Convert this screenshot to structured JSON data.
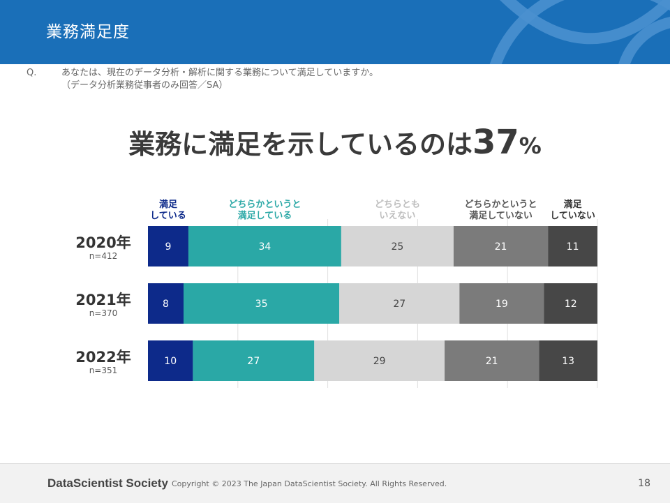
{
  "header": {
    "title": "業務満足度"
  },
  "question": {
    "label": "Q.",
    "text": "あなたは、現在のデータ分析・解析に関する業務について満足していますか。",
    "sub": "（データ分析業務従事者のみ回答／SA）"
  },
  "headline": {
    "text": "業務に満足を示しているのは",
    "value": "37",
    "unit": "%"
  },
  "chart_data": {
    "type": "bar",
    "orientation": "horizontal-stacked-100",
    "legend": [
      {
        "line1": "満足",
        "line2": "している",
        "color": "#0d2a8a"
      },
      {
        "line1": "どちらかというと",
        "line2": "満足している",
        "color": "#2aa8a6"
      },
      {
        "line1": "どちらとも",
        "line2": "いえない",
        "color": "#d6d6d6"
      },
      {
        "line1": "どちらかというと",
        "line2": "満足していない",
        "color": "#7b7b7b"
      },
      {
        "line1": "満足",
        "line2": "していない",
        "color": "#474747"
      }
    ],
    "label_colors": [
      "#0d2a8a",
      "#2aa8a6",
      "#bdbdbd",
      "#555555",
      "#333333"
    ],
    "value_text_colors": [
      "#ffffff",
      "#ffffff",
      "#444444",
      "#ffffff",
      "#ffffff"
    ],
    "categories": [
      {
        "year": "2020年",
        "n": "n=412",
        "values": [
          9,
          34,
          25,
          21,
          11
        ]
      },
      {
        "year": "2021年",
        "n": "n=370",
        "values": [
          8,
          35,
          27,
          19,
          12
        ]
      },
      {
        "year": "2022年",
        "n": "n=351",
        "values": [
          10,
          27,
          29,
          21,
          13
        ]
      }
    ],
    "xlim": [
      0,
      100
    ],
    "gridlines": [
      20,
      40,
      60,
      80,
      100
    ]
  },
  "footer": {
    "brand": "DataScientist Society",
    "copyright": "Copyright © 2023 The Japan DataScientist Society. All Rights Reserved.",
    "page": "18"
  }
}
